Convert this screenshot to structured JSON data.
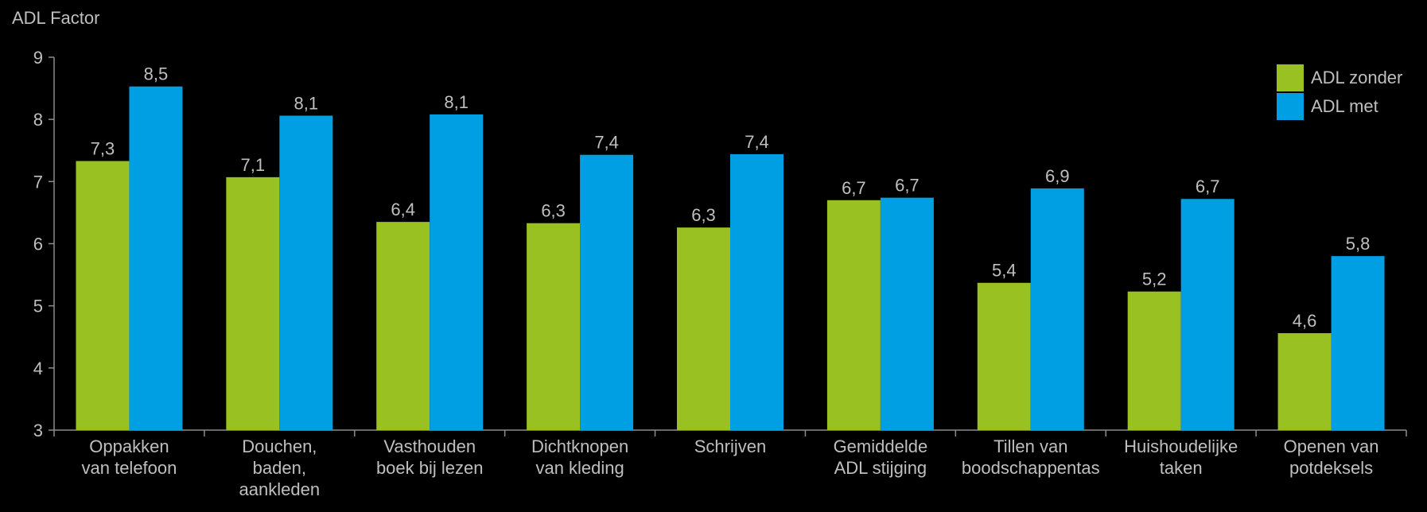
{
  "chart_data": {
    "type": "bar",
    "title": "",
    "xlabel": "",
    "ylabel": "ADL Factor",
    "ylim": [
      3,
      9
    ],
    "yticks": [
      3,
      4,
      5,
      6,
      7,
      8,
      9
    ],
    "categories": [
      [
        "Oppakken",
        "van telefoon"
      ],
      [
        "Douchen,",
        "baden,",
        "aankleden"
      ],
      [
        "Vasthouden",
        "boek bij lezen"
      ],
      [
        "Dichtknopen",
        "van kleding"
      ],
      [
        "Schrijven"
      ],
      [
        "Gemiddelde",
        "ADL stijging"
      ],
      [
        "Tillen van",
        "boodschappentas"
      ],
      [
        "Huishoudelijke",
        "taken"
      ],
      [
        "Openen van",
        "potdeksels"
      ]
    ],
    "series": [
      {
        "name": "ADL zonder",
        "color": "#99c121",
        "values": [
          7.33,
          7.07,
          6.35,
          6.33,
          6.26,
          6.7,
          5.37,
          5.23,
          4.56
        ],
        "labels": [
          "7,3",
          "7,1",
          "6,4",
          "6,3",
          "6,3",
          "6,7",
          "5,4",
          "5,2",
          "4,6"
        ]
      },
      {
        "name": "ADL met",
        "color": "#009fe3",
        "values": [
          8.53,
          8.06,
          8.08,
          7.43,
          7.44,
          6.74,
          6.89,
          6.72,
          5.8
        ],
        "labels": [
          "8,5",
          "8,1",
          "8,1",
          "7,4",
          "7,4",
          "6,7",
          "6,9",
          "6,7",
          "5,8"
        ]
      }
    ],
    "legend_position": "top-right",
    "grid": false
  }
}
